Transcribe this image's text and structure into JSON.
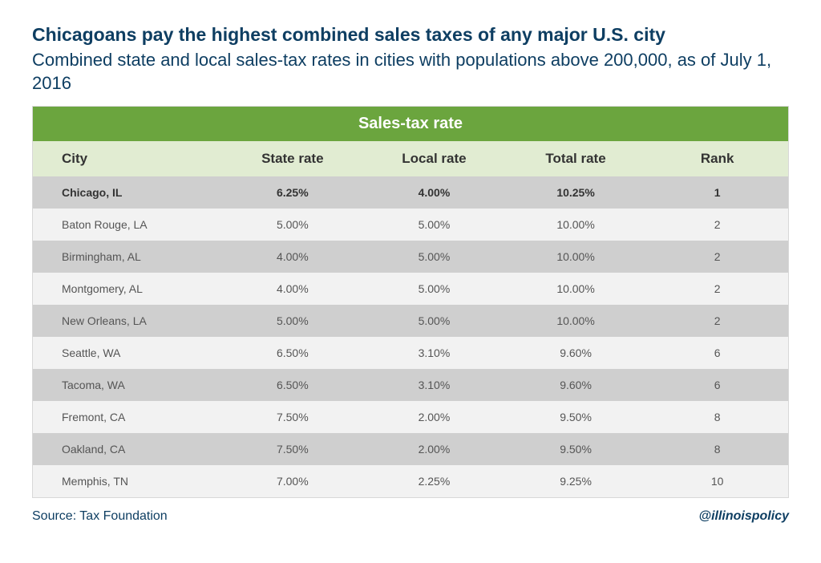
{
  "header": {
    "title": "Chicagoans pay the highest combined sales taxes of any major U.S. city",
    "subtitle": "Combined state and local sales-tax rates in cities with populations above 200,000, as of July 1, 2016"
  },
  "table": {
    "banner": "Sales-tax rate",
    "columns": [
      "City",
      "State rate",
      "Local rate",
      "Total rate",
      "Rank"
    ],
    "col_widths": [
      "25%",
      "18.75%",
      "18.75%",
      "18.75%",
      "18.75%"
    ],
    "highlight_row": 0,
    "rows": [
      [
        "Chicago, IL",
        "6.25%",
        "4.00%",
        "10.25%",
        "1"
      ],
      [
        "Baton Rouge, LA",
        "5.00%",
        "5.00%",
        "10.00%",
        "2"
      ],
      [
        "Birmingham, AL",
        "4.00%",
        "5.00%",
        "10.00%",
        "2"
      ],
      [
        "Montgomery, AL",
        "4.00%",
        "5.00%",
        "10.00%",
        "2"
      ],
      [
        "New Orleans, LA",
        "5.00%",
        "5.00%",
        "10.00%",
        "2"
      ],
      [
        "Seattle, WA",
        "6.50%",
        "3.10%",
        "9.60%",
        "6"
      ],
      [
        "Tacoma, WA",
        "6.50%",
        "3.10%",
        "9.60%",
        "6"
      ],
      [
        "Fremont, CA",
        "7.50%",
        "2.00%",
        "9.50%",
        "8"
      ],
      [
        "Oakland, CA",
        "7.50%",
        "2.00%",
        "9.50%",
        "8"
      ],
      [
        "Memphis, TN",
        "7.00%",
        "2.25%",
        "9.25%",
        "10"
      ]
    ]
  },
  "footer": {
    "source": "Source: Tax Foundation",
    "handle": "@illinoispolicy"
  },
  "styling": {
    "title_color": "#0e3e62",
    "banner_bg": "#6ba53e",
    "banner_fg": "#ffffff",
    "header_row_bg": "#e1ecd2",
    "row_odd_bg": "#cfcfcf",
    "row_even_bg": "#f2f2f2",
    "border_color": "#d8d8d8",
    "body_font_size": 14,
    "title_font_size": 23,
    "subtitle_font_size": 22,
    "banner_font_size": 20,
    "th_font_size": 17,
    "footer_font_size": 16
  }
}
